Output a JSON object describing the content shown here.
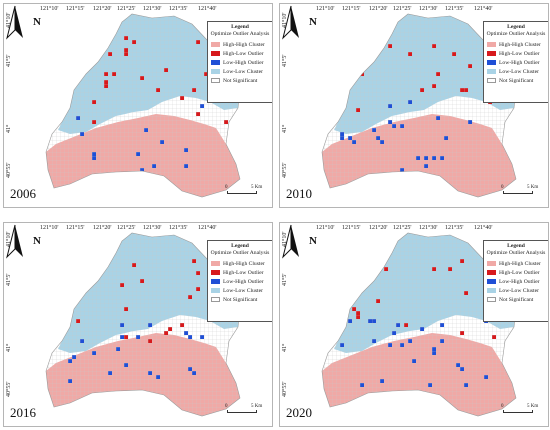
{
  "lon_ticks": [
    "121°10'",
    "121°15'",
    "121°20'",
    "121°25'",
    "121°30'",
    "121°35'",
    "121°40'"
  ],
  "lat_ticks": [
    "41°10'",
    "41°5'",
    "41°",
    "40°55'"
  ],
  "north_label": "N",
  "legend": {
    "title": "Legend",
    "subtitle": "Optimize Outlier Analysis",
    "items": [
      {
        "label": "High-High Cluster",
        "color": "#f0a9a6"
      },
      {
        "label": "High-Low Outlier",
        "color": "#d7191c"
      },
      {
        "label": "Low-High Outlier",
        "color": "#1f4fd6"
      },
      {
        "label": "Low-Low Cluster",
        "color": "#a9d3e6"
      },
      {
        "label": "Not Significant",
        "color": "#ffffff"
      }
    ]
  },
  "scale": {
    "start": "0",
    "end": "5 Km"
  },
  "panels": [
    {
      "year": "2006"
    },
    {
      "year": "2010"
    },
    {
      "year": "2016"
    },
    {
      "year": "2020"
    }
  ],
  "colors": {
    "high_high": "#f0a9a6",
    "high_low": "#d7191c",
    "low_high": "#1f4fd6",
    "low_low": "#a9d3e6",
    "not_significant_fill": "#ffffff",
    "grid_line": "#c8c8c8"
  }
}
